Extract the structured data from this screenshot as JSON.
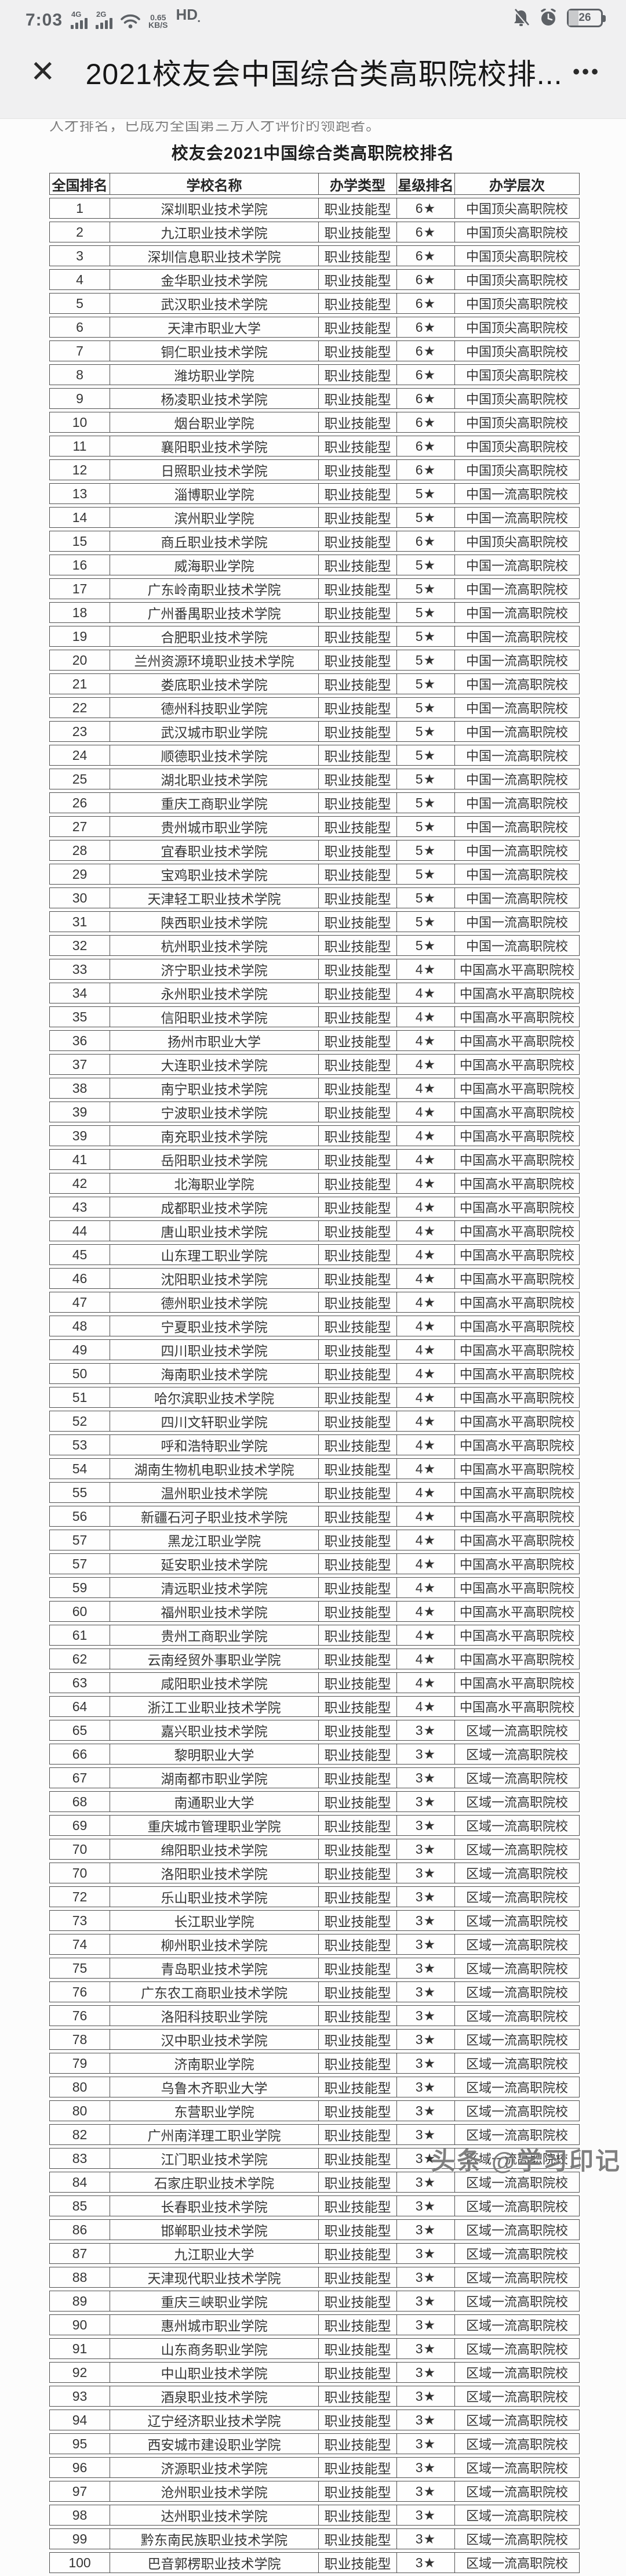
{
  "status_bar": {
    "time": "7:03",
    "sim1_label": "4G",
    "sim2_label": "2G",
    "network_speed": "0.65",
    "network_speed_unit": "KB/S",
    "hd_label": "HD",
    "battery_percent": "26"
  },
  "nav_bar": {
    "close_glyph": "✕",
    "title": "2021校友会中国综合类高职院校排...",
    "more_glyph": "•••"
  },
  "intro_text_clipped": "人才排名，已成为全国第三方人才评价的领跑者。",
  "table": {
    "title": "校友会2021中国综合类高职院校排名",
    "headers": [
      "全国排名",
      "学校名称",
      "办学类型",
      "星级排名",
      "办学层次"
    ],
    "rows": [
      [
        "1",
        "深圳职业技术学院",
        "职业技能型",
        "6★",
        "中国顶尖高职院校"
      ],
      [
        "2",
        "九江职业技术学院",
        "职业技能型",
        "6★",
        "中国顶尖高职院校"
      ],
      [
        "3",
        "深圳信息职业技术学院",
        "职业技能型",
        "6★",
        "中国顶尖高职院校"
      ],
      [
        "4",
        "金华职业技术学院",
        "职业技能型",
        "6★",
        "中国顶尖高职院校"
      ],
      [
        "5",
        "武汉职业技术学院",
        "职业技能型",
        "6★",
        "中国顶尖高职院校"
      ],
      [
        "6",
        "天津市职业大学",
        "职业技能型",
        "6★",
        "中国顶尖高职院校"
      ],
      [
        "7",
        "铜仁职业技术学院",
        "职业技能型",
        "6★",
        "中国顶尖高职院校"
      ],
      [
        "8",
        "潍坊职业学院",
        "职业技能型",
        "6★",
        "中国顶尖高职院校"
      ],
      [
        "9",
        "杨凌职业技术学院",
        "职业技能型",
        "6★",
        "中国顶尖高职院校"
      ],
      [
        "10",
        "烟台职业学院",
        "职业技能型",
        "6★",
        "中国顶尖高职院校"
      ],
      [
        "11",
        "襄阳职业技术学院",
        "职业技能型",
        "6★",
        "中国顶尖高职院校"
      ],
      [
        "12",
        "日照职业技术学院",
        "职业技能型",
        "6★",
        "中国顶尖高职院校"
      ],
      [
        "13",
        "淄博职业学院",
        "职业技能型",
        "5★",
        "中国一流高职院校"
      ],
      [
        "14",
        "滨州职业学院",
        "职业技能型",
        "5★",
        "中国一流高职院校"
      ],
      [
        "15",
        "商丘职业技术学院",
        "职业技能型",
        "6★",
        "中国顶尖高职院校"
      ],
      [
        "16",
        "威海职业学院",
        "职业技能型",
        "5★",
        "中国一流高职院校"
      ],
      [
        "17",
        "广东岭南职业技术学院",
        "职业技能型",
        "5★",
        "中国一流高职院校"
      ],
      [
        "18",
        "广州番禺职业技术学院",
        "职业技能型",
        "5★",
        "中国一流高职院校"
      ],
      [
        "19",
        "合肥职业技术学院",
        "职业技能型",
        "5★",
        "中国一流高职院校"
      ],
      [
        "20",
        "兰州资源环境职业技术学院",
        "职业技能型",
        "5★",
        "中国一流高职院校"
      ],
      [
        "21",
        "娄底职业技术学院",
        "职业技能型",
        "5★",
        "中国一流高职院校"
      ],
      [
        "22",
        "德州科技职业学院",
        "职业技能型",
        "5★",
        "中国一流高职院校"
      ],
      [
        "23",
        "武汉城市职业学院",
        "职业技能型",
        "5★",
        "中国一流高职院校"
      ],
      [
        "24",
        "顺德职业技术学院",
        "职业技能型",
        "5★",
        "中国一流高职院校"
      ],
      [
        "25",
        "湖北职业技术学院",
        "职业技能型",
        "5★",
        "中国一流高职院校"
      ],
      [
        "26",
        "重庆工商职业学院",
        "职业技能型",
        "5★",
        "中国一流高职院校"
      ],
      [
        "27",
        "贵州城市职业学院",
        "职业技能型",
        "5★",
        "中国一流高职院校"
      ],
      [
        "28",
        "宜春职业技术学院",
        "职业技能型",
        "5★",
        "中国一流高职院校"
      ],
      [
        "29",
        "宝鸡职业技术学院",
        "职业技能型",
        "5★",
        "中国一流高职院校"
      ],
      [
        "30",
        "天津轻工职业技术学院",
        "职业技能型",
        "5★",
        "中国一流高职院校"
      ],
      [
        "31",
        "陕西职业技术学院",
        "职业技能型",
        "5★",
        "中国一流高职院校"
      ],
      [
        "32",
        "杭州职业技术学院",
        "职业技能型",
        "5★",
        "中国一流高职院校"
      ],
      [
        "33",
        "济宁职业技术学院",
        "职业技能型",
        "4★",
        "中国高水平高职院校"
      ],
      [
        "34",
        "永州职业技术学院",
        "职业技能型",
        "4★",
        "中国高水平高职院校"
      ],
      [
        "35",
        "信阳职业技术学院",
        "职业技能型",
        "4★",
        "中国高水平高职院校"
      ],
      [
        "36",
        "扬州市职业大学",
        "职业技能型",
        "4★",
        "中国高水平高职院校"
      ],
      [
        "37",
        "大连职业技术学院",
        "职业技能型",
        "4★",
        "中国高水平高职院校"
      ],
      [
        "38",
        "南宁职业技术学院",
        "职业技能型",
        "4★",
        "中国高水平高职院校"
      ],
      [
        "39",
        "宁波职业技术学院",
        "职业技能型",
        "4★",
        "中国高水平高职院校"
      ],
      [
        "39",
        "南充职业技术学院",
        "职业技能型",
        "4★",
        "中国高水平高职院校"
      ],
      [
        "41",
        "岳阳职业技术学院",
        "职业技能型",
        "4★",
        "中国高水平高职院校"
      ],
      [
        "42",
        "北海职业学院",
        "职业技能型",
        "4★",
        "中国高水平高职院校"
      ],
      [
        "43",
        "成都职业技术学院",
        "职业技能型",
        "4★",
        "中国高水平高职院校"
      ],
      [
        "44",
        "唐山职业技术学院",
        "职业技能型",
        "4★",
        "中国高水平高职院校"
      ],
      [
        "45",
        "山东理工职业学院",
        "职业技能型",
        "4★",
        "中国高水平高职院校"
      ],
      [
        "46",
        "沈阳职业技术学院",
        "职业技能型",
        "4★",
        "中国高水平高职院校"
      ],
      [
        "47",
        "德州职业技术学院",
        "职业技能型",
        "4★",
        "中国高水平高职院校"
      ],
      [
        "48",
        "宁夏职业技术学院",
        "职业技能型",
        "4★",
        "中国高水平高职院校"
      ],
      [
        "49",
        "四川职业技术学院",
        "职业技能型",
        "4★",
        "中国高水平高职院校"
      ],
      [
        "50",
        "海南职业技术学院",
        "职业技能型",
        "4★",
        "中国高水平高职院校"
      ],
      [
        "51",
        "哈尔滨职业技术学院",
        "职业技能型",
        "4★",
        "中国高水平高职院校"
      ],
      [
        "52",
        "四川文轩职业学院",
        "职业技能型",
        "4★",
        "中国高水平高职院校"
      ],
      [
        "53",
        "呼和浩特职业学院",
        "职业技能型",
        "4★",
        "中国高水平高职院校"
      ],
      [
        "54",
        "湖南生物机电职业技术学院",
        "职业技能型",
        "4★",
        "中国高水平高职院校"
      ],
      [
        "55",
        "温州职业技术学院",
        "职业技能型",
        "4★",
        "中国高水平高职院校"
      ],
      [
        "56",
        "新疆石河子职业技术学院",
        "职业技能型",
        "4★",
        "中国高水平高职院校"
      ],
      [
        "57",
        "黑龙江职业学院",
        "职业技能型",
        "4★",
        "中国高水平高职院校"
      ],
      [
        "57",
        "延安职业技术学院",
        "职业技能型",
        "4★",
        "中国高水平高职院校"
      ],
      [
        "59",
        "清远职业技术学院",
        "职业技能型",
        "4★",
        "中国高水平高职院校"
      ],
      [
        "60",
        "福州职业技术学院",
        "职业技能型",
        "4★",
        "中国高水平高职院校"
      ],
      [
        "61",
        "贵州工商职业学院",
        "职业技能型",
        "4★",
        "中国高水平高职院校"
      ],
      [
        "62",
        "云南经贸外事职业学院",
        "职业技能型",
        "4★",
        "中国高水平高职院校"
      ],
      [
        "63",
        "咸阳职业技术学院",
        "职业技能型",
        "4★",
        "中国高水平高职院校"
      ],
      [
        "64",
        "浙江工业职业技术学院",
        "职业技能型",
        "4★",
        "中国高水平高职院校"
      ],
      [
        "65",
        "嘉兴职业技术学院",
        "职业技能型",
        "3★",
        "区域一流高职院校"
      ],
      [
        "66",
        "黎明职业大学",
        "职业技能型",
        "3★",
        "区域一流高职院校"
      ],
      [
        "67",
        "湖南都市职业学院",
        "职业技能型",
        "3★",
        "区域一流高职院校"
      ],
      [
        "68",
        "南通职业大学",
        "职业技能型",
        "3★",
        "区域一流高职院校"
      ],
      [
        "69",
        "重庆城市管理职业学院",
        "职业技能型",
        "3★",
        "区域一流高职院校"
      ],
      [
        "70",
        "绵阳职业技术学院",
        "职业技能型",
        "3★",
        "区域一流高职院校"
      ],
      [
        "70",
        "洛阳职业技术学院",
        "职业技能型",
        "3★",
        "区域一流高职院校"
      ],
      [
        "72",
        "乐山职业技术学院",
        "职业技能型",
        "3★",
        "区域一流高职院校"
      ],
      [
        "73",
        "长江职业学院",
        "职业技能型",
        "3★",
        "区域一流高职院校"
      ],
      [
        "74",
        "柳州职业技术学院",
        "职业技能型",
        "3★",
        "区域一流高职院校"
      ],
      [
        "75",
        "青岛职业技术学院",
        "职业技能型",
        "3★",
        "区域一流高职院校"
      ],
      [
        "76",
        "广东农工商职业技术学院",
        "职业技能型",
        "3★",
        "区域一流高职院校"
      ],
      [
        "76",
        "洛阳科技职业学院",
        "职业技能型",
        "3★",
        "区域一流高职院校"
      ],
      [
        "78",
        "汉中职业技术学院",
        "职业技能型",
        "3★",
        "区域一流高职院校"
      ],
      [
        "79",
        "济南职业学院",
        "职业技能型",
        "3★",
        "区域一流高职院校"
      ],
      [
        "80",
        "乌鲁木齐职业大学",
        "职业技能型",
        "3★",
        "区域一流高职院校"
      ],
      [
        "80",
        "东营职业学院",
        "职业技能型",
        "3★",
        "区域一流高职院校"
      ],
      [
        "82",
        "广州南洋理工职业学院",
        "职业技能型",
        "3★",
        "区域一流高职院校"
      ],
      [
        "83",
        "江门职业技术学院",
        "职业技能型",
        "3★",
        "区域一流高职院校"
      ],
      [
        "84",
        "石家庄职业技术学院",
        "职业技能型",
        "3★",
        "区域一流高职院校"
      ],
      [
        "85",
        "长春职业技术学院",
        "职业技能型",
        "3★",
        "区域一流高职院校"
      ],
      [
        "86",
        "邯郸职业技术学院",
        "职业技能型",
        "3★",
        "区域一流高职院校"
      ],
      [
        "87",
        "九江职业大学",
        "职业技能型",
        "3★",
        "区域一流高职院校"
      ],
      [
        "88",
        "天津现代职业技术学院",
        "职业技能型",
        "3★",
        "区域一流高职院校"
      ],
      [
        "89",
        "重庆三峡职业学院",
        "职业技能型",
        "3★",
        "区域一流高职院校"
      ],
      [
        "90",
        "惠州城市职业学院",
        "职业技能型",
        "3★",
        "区域一流高职院校"
      ],
      [
        "91",
        "山东商务职业学院",
        "职业技能型",
        "3★",
        "区域一流高职院校"
      ],
      [
        "92",
        "中山职业技术学院",
        "职业技能型",
        "3★",
        "区域一流高职院校"
      ],
      [
        "93",
        "酒泉职业技术学院",
        "职业技能型",
        "3★",
        "区域一流高职院校"
      ],
      [
        "94",
        "辽宁经济职业技术学院",
        "职业技能型",
        "3★",
        "区域一流高职院校"
      ],
      [
        "95",
        "西安城市建设职业学院",
        "职业技能型",
        "3★",
        "区域一流高职院校"
      ],
      [
        "96",
        "济源职业技术学院",
        "职业技能型",
        "3★",
        "区域一流高职院校"
      ],
      [
        "97",
        "沧州职业技术学院",
        "职业技能型",
        "3★",
        "区域一流高职院校"
      ],
      [
        "98",
        "达州职业技术学院",
        "职业技能型",
        "3★",
        "区域一流高职院校"
      ],
      [
        "99",
        "黔东南民族职业技术学院",
        "职业技能型",
        "3★",
        "区域一流高职院校"
      ],
      [
        "100",
        "巴音郭楞职业技术学院",
        "职业技能型",
        "3★",
        "区域一流高职院校"
      ]
    ]
  },
  "watermark": "头条 @学习印记",
  "colors": {
    "top_zone_bg": "#f0f0f1",
    "status_icon": "#5d6166",
    "table_border": "#4f4f4f",
    "cell_text": "#353535",
    "watermark_gray": "#636363"
  }
}
